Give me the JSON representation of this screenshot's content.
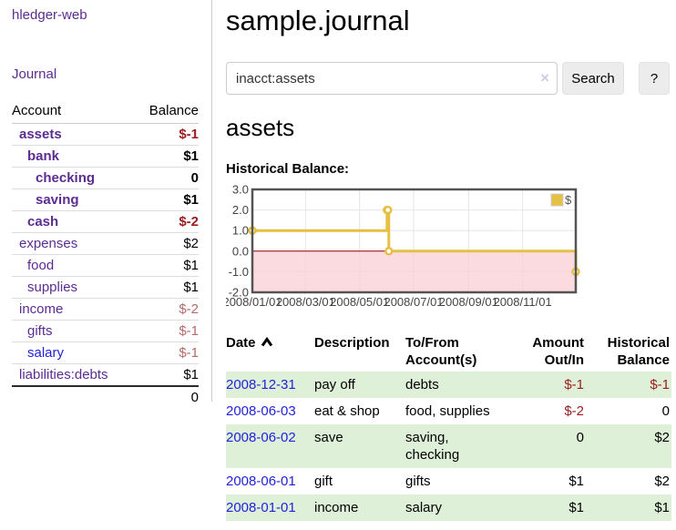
{
  "colors": {
    "accent_purple": "#5b2d90",
    "link_blue": "#2222dd",
    "negative_strong": "#9b1d1d",
    "negative_soft": "#b26b6b",
    "row_green": "#dff0d8",
    "chart_line_gold": "#e6bf45",
    "chart_negative_pink": "#f9cfd4",
    "chart_zero_line_red": "#8b0000",
    "chart_border_gray": "#545454"
  },
  "sidebar": {
    "brand": "hledger-web",
    "journal_link": "Journal",
    "accounts_table": {
      "headers": {
        "account": "Account",
        "balance": "Balance"
      },
      "rows": [
        {
          "name": "assets",
          "balance": "$-1",
          "level": 1,
          "bold": true
        },
        {
          "name": "bank",
          "balance": "$1",
          "level": 2,
          "bold": true
        },
        {
          "name": "checking",
          "balance": "0",
          "level": 3,
          "bold": true
        },
        {
          "name": "saving",
          "balance": "$1",
          "level": 3,
          "bold": true
        },
        {
          "name": "cash",
          "balance": "$-2",
          "level": 2,
          "bold": true
        },
        {
          "name": "expenses",
          "balance": "$2",
          "level": 1,
          "bold": false
        },
        {
          "name": "food",
          "balance": "$1",
          "level": 2,
          "bold": false
        },
        {
          "name": "supplies",
          "balance": "$1",
          "level": 2,
          "bold": false
        },
        {
          "name": "income",
          "balance": "$-2",
          "level": 1,
          "bold": false
        },
        {
          "name": "gifts",
          "balance": "$-1",
          "level": 2,
          "bold": false
        },
        {
          "name": "salary",
          "balance": "$-1",
          "level": 2,
          "bold": false,
          "unvisited": true
        },
        {
          "name": "liabilities:debts",
          "balance": "$1",
          "level": 1,
          "bold": false
        }
      ],
      "total": "0"
    }
  },
  "main": {
    "title": "sample.journal",
    "search": {
      "value": "inacct:assets",
      "clear_icon": "×",
      "button": "Search",
      "help_button": "?"
    },
    "account_heading": "assets",
    "chart_heading": "Historical Balance:"
  },
  "chart_data": {
    "type": "line",
    "step": true,
    "title": "Historical Balance:",
    "legend": "$",
    "legend_position": "top-right",
    "grid": true,
    "negative_region_shaded": true,
    "y_ticks": [
      3.0,
      2.0,
      1.0,
      0.0,
      -1.0,
      -2.0
    ],
    "y_tick_labels": [
      "3.0",
      "2.0",
      "1.0",
      "0.0",
      "-1.0",
      "-2.0"
    ],
    "ylim": [
      -2.0,
      3.0
    ],
    "x_range": [
      "2008-01-01",
      "2008-12-31"
    ],
    "x_ticks": [
      "2008-03-01",
      "2008-05-01",
      "2008-07-01",
      "2008-09-01",
      "2008-11-01"
    ],
    "x_tick_labels": [
      "2008/01/01",
      "2008/03/01",
      "2008/05/01",
      "2008/07/01",
      "2008/09/01",
      "2008/11/01"
    ],
    "x_tick_label_dates": [
      "2008-01-01",
      "2008-03-01",
      "2008-05-01",
      "2008-07-01",
      "2008-09-01",
      "2008-11-01"
    ],
    "series": [
      {
        "name": "$",
        "points": [
          [
            "2008-01-01",
            1
          ],
          [
            "2008-06-01",
            2
          ],
          [
            "2008-06-02",
            2
          ],
          [
            "2008-06-03",
            0
          ],
          [
            "2008-12-31",
            -1
          ]
        ]
      }
    ]
  },
  "register": {
    "headers": [
      {
        "lines": [
          "Date"
        ],
        "sorted": "asc"
      },
      {
        "lines": [
          "Description"
        ]
      },
      {
        "lines": [
          "To/From",
          "Account(s)"
        ]
      },
      {
        "lines": [
          "Amount",
          "Out/In"
        ],
        "align": "right"
      },
      {
        "lines": [
          "Historical",
          "Balance"
        ],
        "align": "right"
      }
    ],
    "rows": [
      {
        "date": "2008-12-31",
        "description": "pay off",
        "accounts": "debts",
        "amount": "$-1",
        "balance": "$-1"
      },
      {
        "date": "2008-06-03",
        "description": "eat & shop",
        "accounts": "food, supplies",
        "amount": "$-2",
        "balance": "0"
      },
      {
        "date": "2008-06-02",
        "description": "save",
        "accounts": "saving, checking",
        "amount": "0",
        "balance": "$2"
      },
      {
        "date": "2008-06-01",
        "description": "gift",
        "accounts": "gifts",
        "amount": "$1",
        "balance": "$2"
      },
      {
        "date": "2008-01-01",
        "description": "income",
        "accounts": "salary",
        "amount": "$1",
        "balance": "$1"
      }
    ]
  }
}
